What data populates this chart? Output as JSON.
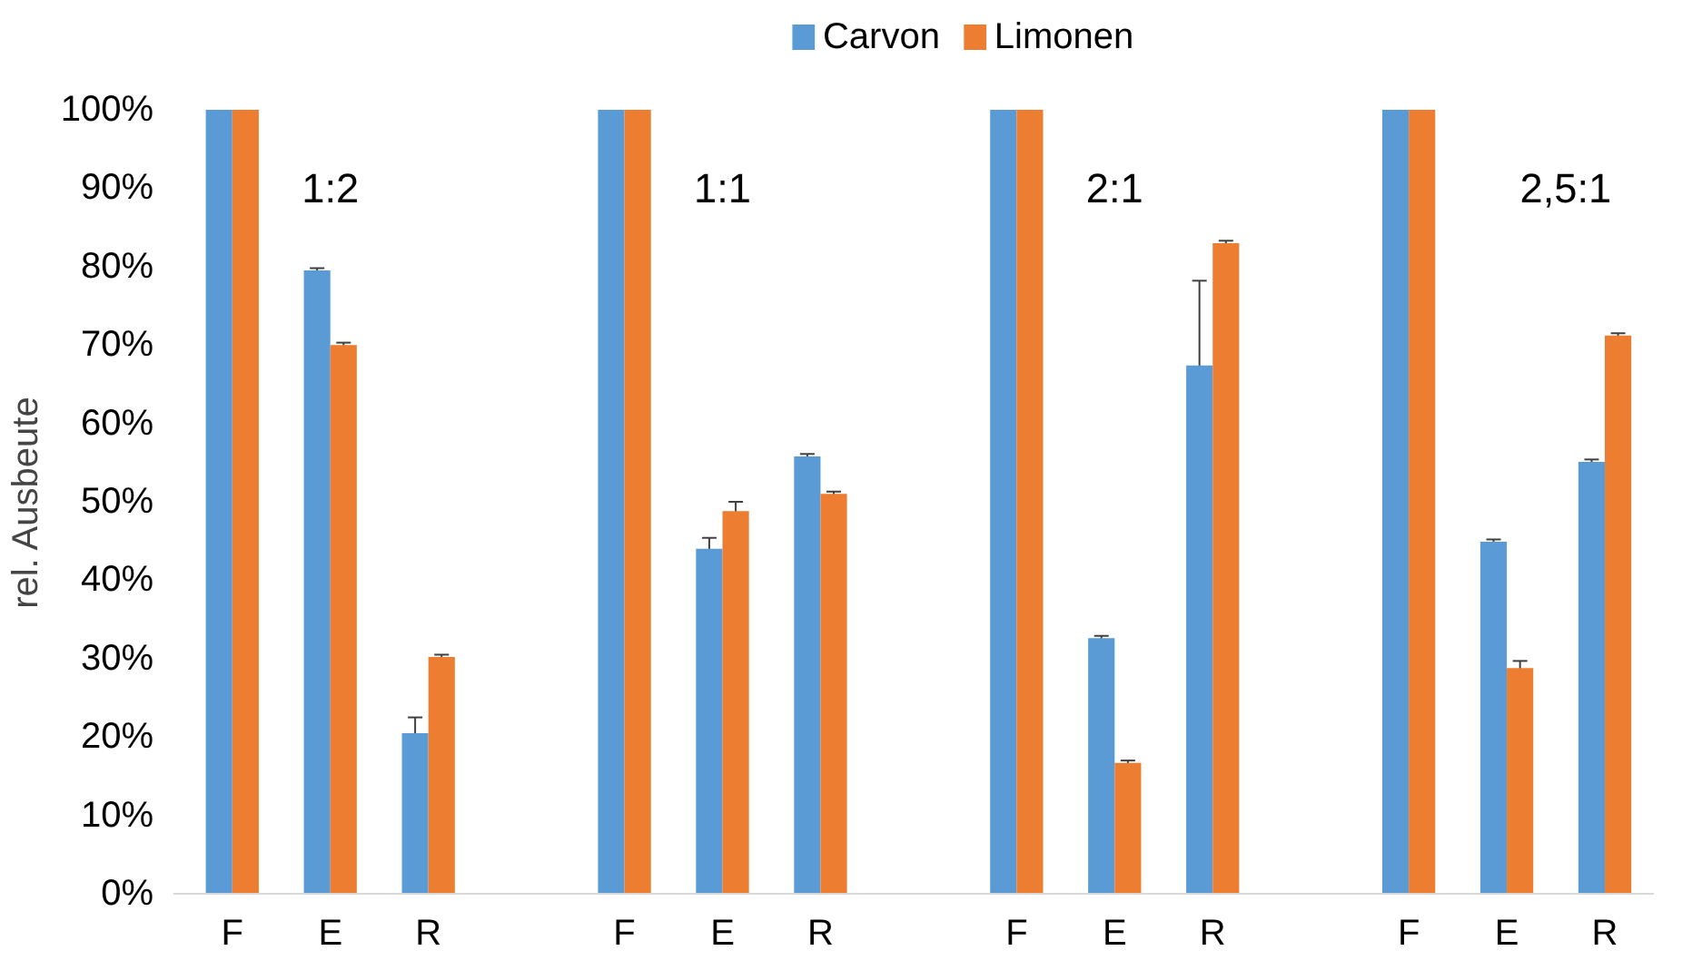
{
  "chart_data": {
    "type": "bar",
    "ylabel": "rel. Ausbeute",
    "categories": [
      "F",
      "E",
      "R",
      null,
      "F",
      "E",
      "R",
      null,
      "F",
      "E",
      "R",
      null,
      "F",
      "E",
      "R"
    ],
    "series": [
      {
        "name": "Carvon",
        "color": "#5b9bd5",
        "values": [
          100,
          79.5,
          20.5,
          null,
          100,
          44,
          55.8,
          null,
          100,
          32.6,
          67.4,
          null,
          100,
          44.9,
          55.1
        ],
        "errors": [
          0.3,
          0.3,
          2,
          null,
          0.3,
          1.4,
          0.3,
          null,
          0.3,
          0.3,
          10.8,
          null,
          0.3,
          0.3,
          0.3
        ]
      },
      {
        "name": "Limonen",
        "color": "#ed7d31",
        "values": [
          100,
          70,
          30.2,
          null,
          100,
          48.8,
          51,
          null,
          100,
          16.7,
          83,
          null,
          100,
          28.8,
          71.2
        ],
        "errors": [
          0.3,
          0.3,
          0.3,
          null,
          0.3,
          1.2,
          0.3,
          null,
          0.3,
          0.3,
          0.3,
          null,
          0.3,
          0.9,
          0.3
        ]
      }
    ],
    "ylim": [
      0,
      100
    ],
    "yticks": [
      {
        "value": 0,
        "label": "0%"
      },
      {
        "value": 10,
        "label": "10%"
      },
      {
        "value": 20,
        "label": "20%"
      },
      {
        "value": 30,
        "label": "30%"
      },
      {
        "value": 40,
        "label": "40%"
      },
      {
        "value": 50,
        "label": "50%"
      },
      {
        "value": 60,
        "label": "60%"
      },
      {
        "value": 70,
        "label": "70%"
      },
      {
        "value": 80,
        "label": "80%"
      },
      {
        "value": 90,
        "label": "90%"
      },
      {
        "value": 100,
        "label": "100%"
      }
    ],
    "annotations": [
      "1:2",
      "1:1",
      "2:1",
      "2,5:1"
    ],
    "grid": false,
    "legend": "top"
  }
}
